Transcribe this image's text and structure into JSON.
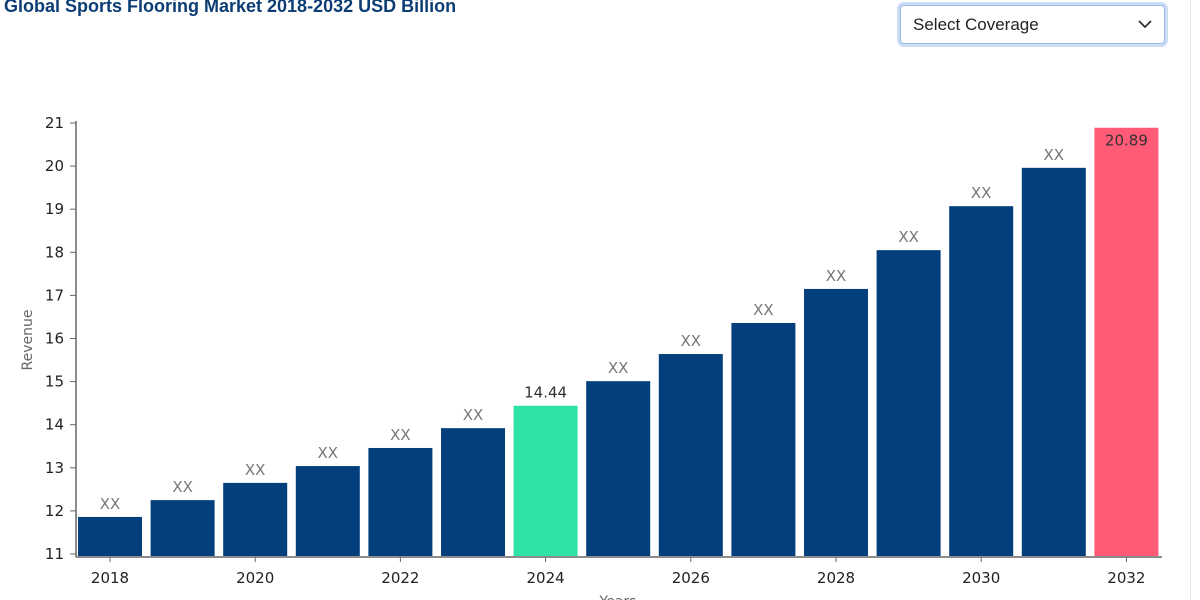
{
  "title": "Global Sports Flooring Market 2018-2032 USD Billion",
  "coverage_select": {
    "value": "Select Coverage",
    "icon": "chevron-down-icon"
  },
  "chart_data": {
    "type": "bar",
    "title": "Global Sports Flooring Market 2018-2032 USD Billion",
    "xlabel": "Years",
    "ylabel": "Revenue",
    "ylim": [
      11,
      21
    ],
    "yticks": [
      11,
      12,
      13,
      14,
      15,
      16,
      17,
      18,
      19,
      20,
      21
    ],
    "categories": [
      "2018",
      "2019",
      "2020",
      "2021",
      "2022",
      "2023",
      "2024",
      "2025",
      "2026",
      "2027",
      "2028",
      "2029",
      "2030",
      "2031",
      "2032"
    ],
    "xtick_labels": [
      "2018",
      "2020",
      "2022",
      "2024",
      "2026",
      "2028",
      "2030",
      "2032"
    ],
    "values": [
      11.86,
      12.25,
      12.65,
      13.04,
      13.46,
      13.92,
      14.44,
      15.01,
      15.64,
      16.36,
      17.15,
      18.05,
      19.07,
      19.96,
      20.89
    ],
    "data_labels": [
      "XX",
      "XX",
      "XX",
      "XX",
      "XX",
      "XX",
      "14.44",
      "XX",
      "XX",
      "XX",
      "XX",
      "XX",
      "XX",
      "XX",
      "20.89"
    ],
    "colors": {
      "default": "#033f7d",
      "highlight_2024": "#2de3a5",
      "highlight_2032": "#ff5a76"
    },
    "grid": false,
    "legend": "none"
  }
}
